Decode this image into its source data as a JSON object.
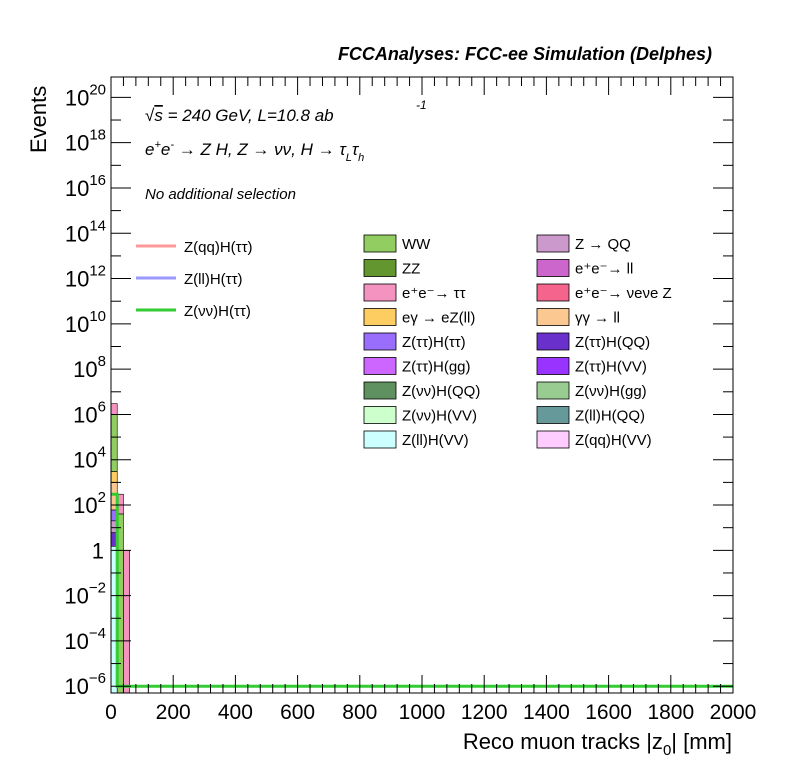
{
  "chart_data": {
    "type": "bar",
    "title": "FCCAnalyses: FCC-ee Simulation (Delphes)",
    "xlabel": "Reco muon tracks |z0| [mm]",
    "ylabel": "Events",
    "xlim": [
      0,
      2000
    ],
    "ylim_log10": [
      -6.3,
      20.9
    ],
    "log_y": true,
    "grid": false,
    "legend_position": "top-right",
    "x_ticks": [
      "0",
      "200",
      "400",
      "600",
      "800",
      "1000",
      "1200",
      "1400",
      "1600",
      "1800",
      "2000"
    ],
    "y_ticks": [
      {
        "exp": -6,
        "label": "10",
        "sup": "−6"
      },
      {
        "exp": -4,
        "label": "10",
        "sup": "−4"
      },
      {
        "exp": -2,
        "label": "10",
        "sup": "−2"
      },
      {
        "exp": 0,
        "label": "1",
        "sup": ""
      },
      {
        "exp": 2,
        "label": "10",
        "sup": "2"
      },
      {
        "exp": 4,
        "label": "10",
        "sup": "4"
      },
      {
        "exp": 6,
        "label": "10",
        "sup": "6"
      },
      {
        "exp": 8,
        "label": "10",
        "sup": "8"
      },
      {
        "exp": 10,
        "label": "10",
        "sup": "10"
      },
      {
        "exp": 12,
        "label": "10",
        "sup": "12"
      },
      {
        "exp": 14,
        "label": "10",
        "sup": "14"
      },
      {
        "exp": 16,
        "label": "10",
        "sup": "16"
      },
      {
        "exp": 18,
        "label": "10",
        "sup": "18"
      },
      {
        "exp": 20,
        "label": "10",
        "sup": "20"
      }
    ],
    "annotations": {
      "energy": "√s = 240 GeV, L=10.8 ab",
      "energy_sup": "-1",
      "process": "e⁺e⁻ → Z H, Z → νν, H → τLτh",
      "selection": "No additional selection"
    },
    "stacked_bins": [
      {
        "x_range": [
          0,
          20
        ],
        "stack_total": 3000000.0,
        "layers": [
          {
            "name": "e⁺e⁻→ ττ",
            "color": "#f492c0",
            "top": 3000000.0
          },
          {
            "name": "WW",
            "color": "#92cd62",
            "top": 1000000.0
          },
          {
            "name": "eγ → eZ(ll)",
            "color": "#fecd62",
            "top": 3000.0
          },
          {
            "name": "γγ → ll",
            "color": "#fcc892",
            "top": 1000.0
          },
          {
            "name": "Z(ττ)H(ττ)",
            "color": "#9a6efc",
            "top": 60
          },
          {
            "name": "Z → QQ",
            "color": "#cc99cc",
            "top": 20
          },
          {
            "name": "Z(ττ)H(QQ)",
            "color": "#6a30cc",
            "top": 6
          },
          {
            "name": "Z(ll)H(VV)",
            "color": "#ccffff",
            "top": 1.5
          }
        ]
      },
      {
        "x_range": [
          20,
          40
        ],
        "stack_total": 300.0,
        "layers": [
          {
            "name": "e⁺e⁻→ ττ",
            "color": "#f492c0",
            "top": 300.0
          },
          {
            "name": "WW",
            "color": "#92cd62",
            "top": 40
          }
        ]
      },
      {
        "x_range": [
          40,
          60
        ],
        "stack_total": 1.0,
        "layers": [
          {
            "name": "e⁺e⁻→ ττ",
            "color": "#f492c0",
            "top": 1.0
          }
        ]
      }
    ],
    "signal_lines": [
      {
        "name": "Z(qq)H(ττ)",
        "color": "#ff9999",
        "points": []
      },
      {
        "name": "Z(ll)H(ττ)",
        "color": "#9999ff",
        "points": []
      },
      {
        "name": "Z(νν)H(ττ)",
        "color": "#33cc33",
        "points": [
          [
            0,
            300
          ],
          [
            20,
            300
          ],
          [
            20,
            1e-06
          ],
          [
            2000,
            1e-06
          ]
        ]
      }
    ],
    "legend_lines": [
      "Z(qq)H(ττ)",
      "Z(ll)H(ττ)",
      "Z(νν)H(ττ)"
    ],
    "legend_boxes_col1": [
      {
        "name": "WW",
        "color": "#92cd62"
      },
      {
        "name": "ZZ",
        "color": "#63962e"
      },
      {
        "name": "e⁺e⁻→ ττ",
        "color": "#f492c0"
      },
      {
        "name": "eγ → eZ(ll)",
        "color": "#fecd62"
      },
      {
        "name": "Z(ττ)H(ττ)",
        "color": "#9a6efc"
      },
      {
        "name": "Z(ττ)H(gg)",
        "color": "#cc66ff"
      },
      {
        "name": "Z(νν)H(QQ)",
        "color": "#5f9060"
      },
      {
        "name": "Z(νν)H(VV)",
        "color": "#ccffcc"
      },
      {
        "name": "Z(ll)H(VV)",
        "color": "#ccffff"
      }
    ],
    "legend_boxes_col2": [
      {
        "name": "Z → QQ",
        "color": "#cc99cc"
      },
      {
        "name": "e⁺e⁻→ ll",
        "color": "#cc66cc"
      },
      {
        "name": "e⁺e⁻→ νeνe Z",
        "color": "#f5648c"
      },
      {
        "name": "γγ → ll",
        "color": "#fcc892"
      },
      {
        "name": "Z(ττ)H(QQ)",
        "color": "#6a30cc"
      },
      {
        "name": "Z(ττ)H(VV)",
        "color": "#9933ff"
      },
      {
        "name": "Z(νν)H(gg)",
        "color": "#99cc91"
      },
      {
        "name": "Z(ll)H(QQ)",
        "color": "#669999"
      },
      {
        "name": "Z(qq)H(VV)",
        "color": "#ffccff"
      }
    ]
  }
}
